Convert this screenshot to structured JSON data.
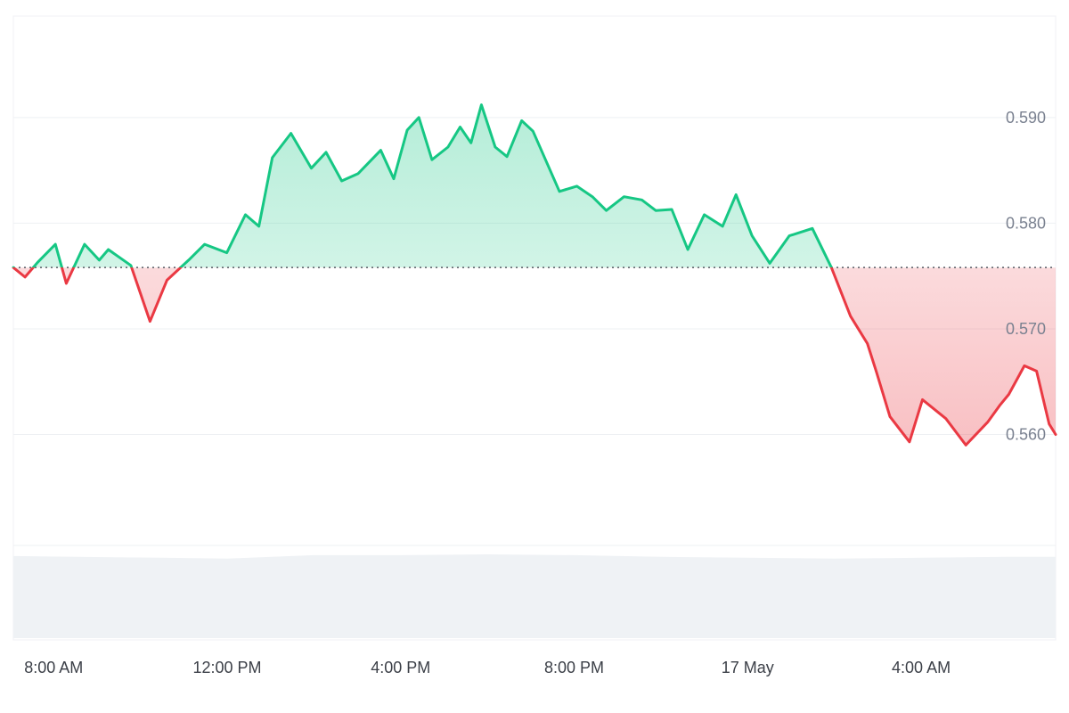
{
  "colors": {
    "up_line": "#16c784",
    "down_line": "#ea3943",
    "up_fill": "#16c784",
    "down_fill": "#ea3943",
    "grid": "#eef0f3",
    "baseline": "#555a63",
    "volume": "#eff2f5"
  },
  "chart_data": {
    "type": "area",
    "baseline": 0.5758,
    "ylim": [
      0.5495,
      0.5996
    ],
    "y_ticks": [
      "0.590",
      "0.580",
      "0.570",
      "0.560"
    ],
    "y_tick_values": [
      0.59,
      0.58,
      0.57,
      0.56
    ],
    "x_ticks": [
      "8:00 AM",
      "12:00 PM",
      "4:00 PM",
      "8:00 PM",
      "17 May",
      "4:00 AM"
    ],
    "x_tick_hours": [
      8,
      12,
      16,
      20,
      24,
      28
    ],
    "xlim_hours": [
      7.07,
      31.1
    ],
    "grid": true,
    "series": [
      {
        "x_hours": [
          7.07,
          7.34,
          7.63,
          8.04,
          8.29,
          8.71,
          9.05,
          9.26,
          9.78,
          10.22,
          10.61,
          11.11,
          11.48,
          11.99,
          12.42,
          12.73,
          13.04,
          13.47,
          13.94,
          14.28,
          14.64,
          15.02,
          15.54,
          15.84,
          16.15,
          16.42,
          16.72,
          17.09,
          17.37,
          17.62,
          17.86,
          18.18,
          18.45,
          18.79,
          19.05,
          19.66,
          20.06,
          20.42,
          20.74,
          21.15,
          21.56,
          21.88,
          22.25,
          22.62,
          23.0,
          23.42,
          23.73,
          24.1,
          24.51,
          24.96,
          25.49,
          25.93,
          26.37,
          26.76,
          26.97,
          27.28,
          27.73,
          28.03,
          28.57,
          29.03,
          29.54,
          29.82,
          30.02,
          30.38,
          30.66,
          30.95,
          31.1
        ],
        "y": [
          0.5758,
          0.5749,
          0.5763,
          0.578,
          0.5743,
          0.578,
          0.5765,
          0.5775,
          0.576,
          0.5707,
          0.5746,
          0.5765,
          0.578,
          0.5772,
          0.5808,
          0.5797,
          0.5862,
          0.5885,
          0.5852,
          0.5867,
          0.584,
          0.5847,
          0.5869,
          0.5842,
          0.5888,
          0.59,
          0.586,
          0.5872,
          0.5891,
          0.5876,
          0.5912,
          0.5872,
          0.5863,
          0.5897,
          0.5887,
          0.583,
          0.5835,
          0.5825,
          0.5812,
          0.5825,
          0.5822,
          0.5812,
          0.5813,
          0.5775,
          0.5808,
          0.5797,
          0.5827,
          0.5788,
          0.5762,
          0.5788,
          0.5795,
          0.5758,
          0.5712,
          0.5686,
          0.5659,
          0.5617,
          0.5593,
          0.5633,
          0.5615,
          0.559,
          0.5612,
          0.5628,
          0.5638,
          0.5665,
          0.566,
          0.561,
          0.56
        ]
      }
    ],
    "volume": {
      "x_hours": [
        7.07,
        8.5,
        10.5,
        12.0,
        14.0,
        16.0,
        18.0,
        20.0,
        22.0,
        24.0,
        26.0,
        28.0,
        30.0,
        31.1
      ],
      "values": [
        0.98,
        0.97,
        0.96,
        0.95,
        0.99,
        0.99,
        1.0,
        0.99,
        0.97,
        0.96,
        0.95,
        0.96,
        0.97,
        0.97
      ]
    }
  }
}
